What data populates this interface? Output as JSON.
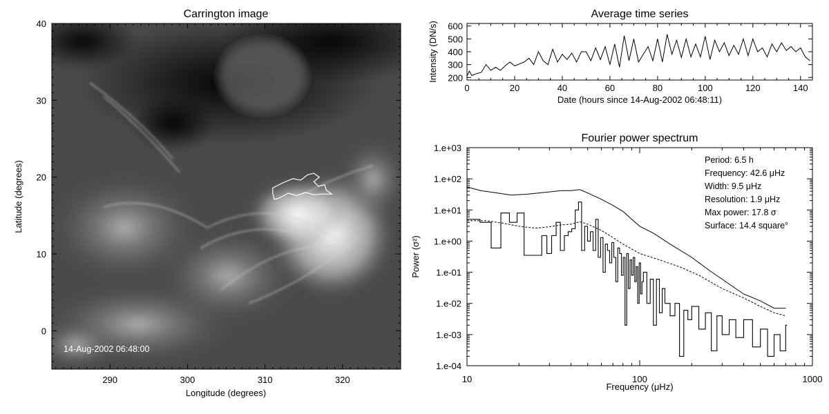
{
  "chart_data": [
    {
      "type": "heatmap",
      "title": "Carrington image",
      "xlabel": "Longitude (degrees)",
      "ylabel": "Latitude (degrees)",
      "xlim": [
        282.5,
        327.5
      ],
      "ylim": [
        -5,
        40
      ],
      "xticks": [
        290,
        300,
        310,
        320
      ],
      "yticks": [
        0,
        10,
        20,
        30,
        40
      ],
      "annotation": "14-Aug-2002 06:48:00",
      "colormap": "grayscale",
      "contour": [
        [
          311.0,
          18.6
        ],
        [
          312.4,
          19.3
        ],
        [
          313.6,
          19.8
        ],
        [
          314.6,
          19.6
        ],
        [
          315.5,
          20.3
        ],
        [
          316.3,
          20.5
        ],
        [
          317.0,
          20.0
        ],
        [
          316.3,
          19.4
        ],
        [
          316.9,
          18.8
        ],
        [
          317.7,
          19.0
        ],
        [
          317.9,
          18.3
        ],
        [
          318.6,
          17.8
        ],
        [
          317.4,
          17.8
        ],
        [
          316.3,
          17.7
        ],
        [
          315.2,
          18.0
        ],
        [
          314.1,
          17.6
        ],
        [
          313.0,
          17.9
        ],
        [
          311.9,
          17.3
        ],
        [
          311.2,
          17.1
        ],
        [
          311.0,
          17.9
        ],
        [
          311.0,
          18.6
        ]
      ]
    },
    {
      "type": "line",
      "title": "Average time series",
      "xlabel": "Date (hours since 14-Aug-2002 06:48:11)",
      "ylabel": "Intensity (DN/s)",
      "xlim": [
        0,
        145
      ],
      "ylim": [
        180,
        620
      ],
      "xticks": [
        0,
        20,
        40,
        60,
        80,
        100,
        120,
        140
      ],
      "yticks": [
        200,
        300,
        400,
        500,
        600
      ],
      "x": [
        0,
        1,
        2,
        4,
        6,
        8,
        10,
        12,
        14,
        16,
        18,
        20,
        22,
        24,
        26,
        28,
        30,
        32,
        34,
        36,
        38,
        40,
        42,
        44,
        46,
        48,
        50,
        52,
        54,
        56,
        58,
        60,
        62,
        64,
        66,
        68,
        70,
        72,
        74,
        76,
        78,
        80,
        82,
        84,
        86,
        88,
        90,
        92,
        94,
        96,
        98,
        100,
        102,
        104,
        106,
        108,
        110,
        112,
        114,
        116,
        118,
        120,
        122,
        124,
        126,
        128,
        130,
        132,
        134,
        136,
        138,
        140,
        142,
        144
      ],
      "values": [
        210,
        250,
        215,
        230,
        240,
        300,
        255,
        280,
        255,
        290,
        320,
        290,
        305,
        320,
        350,
        300,
        400,
        330,
        300,
        420,
        320,
        380,
        340,
        390,
        320,
        400,
        400,
        330,
        430,
        340,
        440,
        300,
        460,
        280,
        525,
        330,
        500,
        320,
        380,
        440,
        330,
        500,
        320,
        535,
        380,
        490,
        355,
        500,
        360,
        460,
        360,
        520,
        340,
        490,
        400,
        470,
        370,
        450,
        380,
        500,
        370,
        500,
        400,
        430,
        360,
        460,
        400,
        470,
        410,
        440,
        400,
        430,
        360,
        330
      ]
    },
    {
      "type": "line",
      "title": "Fourier power spectrum",
      "xlabel": "Frequency (μHz)",
      "ylabel": "Power (σ²)",
      "xscale": "log",
      "yscale": "log",
      "xlim": [
        10,
        1000
      ],
      "ylim": [
        0.0001,
        1000
      ],
      "xticks": [
        10,
        100,
        1000
      ],
      "xticklabels": [
        "10",
        "100",
        "1000"
      ],
      "yticks": [
        0.0001,
        0.001,
        0.01,
        0.1,
        1,
        10,
        100,
        1000
      ],
      "yticklabels": [
        "1.e-04",
        "1.e-03",
        "1.e-02",
        "1.e-01",
        "1.e+00",
        "1.e+01",
        "1.e+02",
        "1.e+03"
      ],
      "annotations": [
        "Period: 6.5 h",
        "Frequency: 42.6 μHz",
        "Width: 9.5 μHz",
        "Resolution: 1.9 μHz",
        "Max power: 17.8 σ",
        "Surface: 14.4 square°"
      ],
      "series": [
        {
          "style": "solid",
          "x": [
            10,
            12,
            15,
            18,
            22,
            26,
            30,
            35,
            40,
            45,
            50,
            60,
            70,
            80,
            90,
            100,
            120,
            150,
            200,
            250,
            300,
            400,
            500,
            600,
            700
          ],
          "values": [
            55,
            42,
            35,
            30,
            32,
            35,
            38,
            42,
            42,
            45,
            35,
            22,
            14,
            9,
            5,
            3,
            1.8,
            0.8,
            0.3,
            0.12,
            0.06,
            0.02,
            0.012,
            0.007,
            0.007
          ]
        },
        {
          "style": "dashed",
          "x": [
            10,
            13,
            16,
            20,
            25,
            30,
            35,
            40,
            45,
            50,
            60,
            70,
            80,
            100,
            130,
            170,
            220,
            300,
            400,
            500,
            600,
            700
          ],
          "values": [
            4.5,
            4.5,
            3.8,
            3.0,
            2.6,
            2.9,
            3.3,
            3.5,
            4.2,
            3.5,
            2.2,
            1.3,
            0.8,
            0.4,
            0.25,
            0.15,
            0.08,
            0.03,
            0.015,
            0.008,
            0.005,
            0.004
          ]
        },
        {
          "style": "histogram",
          "x": [
            10,
            11.9,
            13.8,
            15.7,
            17.6,
            19.5,
            21.4,
            23.3,
            25.2,
            27.1,
            29,
            30.9,
            32.8,
            34.7,
            36.6,
            38.5,
            40.4,
            42.3,
            44.2,
            46.1,
            48,
            49.9,
            51.8,
            53.7,
            55.6,
            57.5,
            59.4,
            61.3,
            63.2,
            65.1,
            67,
            68.9,
            70.8,
            72.7,
            74.6,
            76.5,
            78.4,
            80.3,
            82.2,
            84.1,
            86,
            87.9,
            89.8,
            91.7,
            93.6,
            95.5,
            97.4,
            99.3,
            101.2,
            103.1,
            105,
            110,
            115,
            120,
            125,
            130,
            135,
            140,
            150,
            160,
            170,
            180,
            190,
            200,
            220,
            240,
            260,
            280,
            300,
            330,
            360,
            400,
            450,
            500,
            550,
            600,
            650,
            700
          ],
          "values": [
            5,
            4,
            0.6,
            8,
            4,
            8,
            0.35,
            0.35,
            0.35,
            1.5,
            0.4,
            1.5,
            4,
            0.5,
            1.5,
            2,
            2.5,
            10,
            18,
            0.5,
            3,
            1,
            2,
            0.5,
            5,
            0.3,
            1.3,
            0.1,
            0.8,
            0.5,
            0.2,
            0.9,
            0.3,
            0.05,
            0.6,
            0.4,
            0.08,
            0.3,
            0.002,
            0.4,
            0.03,
            0.25,
            0.08,
            0.3,
            0.05,
            0.15,
            0.01,
            0.2,
            0.02,
            0.05,
            0.1,
            0.01,
            0.06,
            0.002,
            0.06,
            0.005,
            0.03,
            0.01,
            0.004,
            0.01,
            0.0002,
            0.006,
            0.003,
            0.008,
            0.0015,
            0.005,
            0.0003,
            0.004,
            0.001,
            0.003,
            0.0008,
            0.003,
            0.0004,
            0.0015,
            0.0002,
            0.001,
            0.0003,
            0.002
          ]
        }
      ]
    }
  ]
}
